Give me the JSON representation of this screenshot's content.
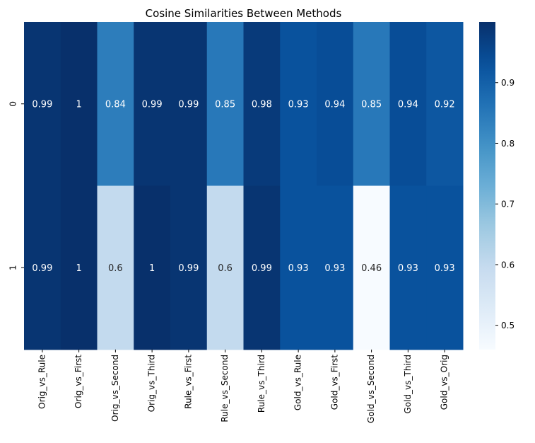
{
  "chart_data": {
    "type": "heatmap",
    "title": "Cosine Similarities Between Methods",
    "xlabel": "",
    "ylabel": "",
    "columns": [
      "Orig_vs_Rule",
      "Orig_vs_First",
      "Orig_vs_Second",
      "Orig_vs_Third",
      "Rule_vs_First",
      "Rule_vs_Second",
      "Rule_vs_Third",
      "Gold_vs_Rule",
      "Gold_vs_First",
      "Gold_vs_Second",
      "Gold_vs_Third",
      "Gold_vs_Orig"
    ],
    "rows": [
      "0",
      "1"
    ],
    "values": [
      [
        0.99,
        1.0,
        0.84,
        0.99,
        0.99,
        0.85,
        0.98,
        0.93,
        0.94,
        0.85,
        0.94,
        0.92
      ],
      [
        0.99,
        1.0,
        0.6,
        1.0,
        0.99,
        0.6,
        0.99,
        0.93,
        0.93,
        0.46,
        0.93,
        0.93
      ]
    ],
    "annotations": [
      [
        "0.99",
        "1",
        "0.84",
        "0.99",
        "0.99",
        "0.85",
        "0.98",
        "0.93",
        "0.94",
        "0.85",
        "0.94",
        "0.92"
      ],
      [
        "0.99",
        "1",
        "0.6",
        "1",
        "0.99",
        "0.6",
        "0.99",
        "0.93",
        "0.93",
        "0.46",
        "0.93",
        "0.93"
      ]
    ],
    "colormap": "Blues",
    "vmin": 0.46,
    "vmax": 1.0,
    "colorbar_ticks": [
      0.5,
      0.6,
      0.7,
      0.8,
      0.9
    ],
    "colorbar_tick_labels": [
      "0.5",
      "0.6",
      "0.7",
      "0.8",
      "0.9"
    ],
    "grid": false,
    "legend": "colorbar-right"
  }
}
